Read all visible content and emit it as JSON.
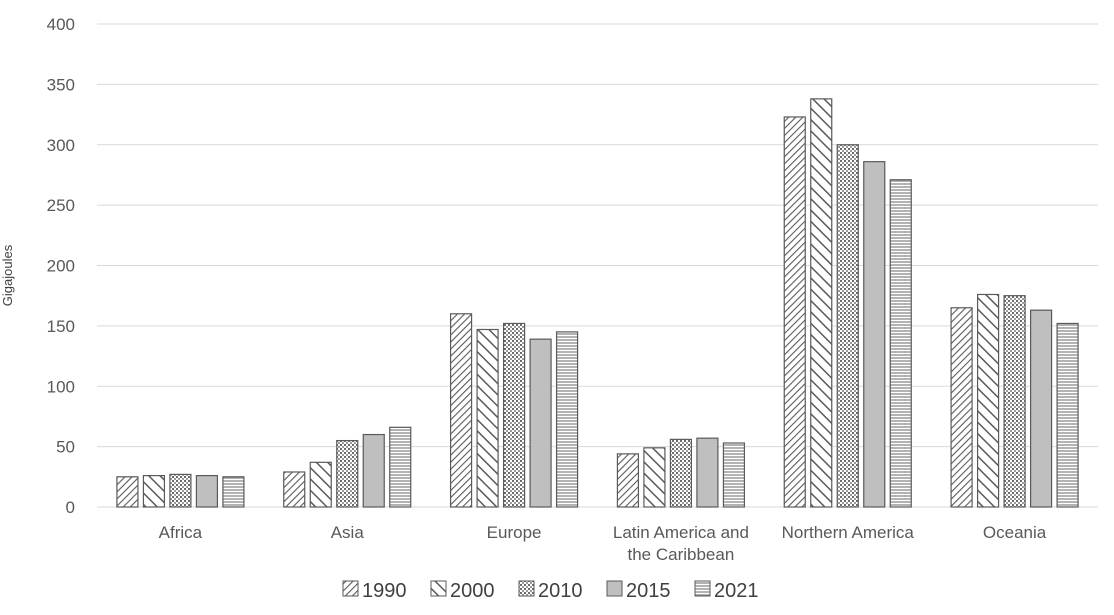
{
  "chart_data": {
    "type": "bar",
    "title": "",
    "xlabel": "",
    "ylabel": "Gigajoules",
    "ylim": [
      0,
      400
    ],
    "yticks": [
      0,
      50,
      100,
      150,
      200,
      250,
      300,
      350,
      400
    ],
    "grid": true,
    "legend_position": "bottom",
    "categories": [
      [
        "Africa"
      ],
      [
        "Asia"
      ],
      [
        "Europe"
      ],
      [
        "Latin America and",
        "the Caribbean"
      ],
      [
        "Northern America"
      ],
      [
        "Oceania"
      ]
    ],
    "series": [
      {
        "name": "1990",
        "pattern": "diag-down",
        "values": [
          25,
          29,
          160,
          44,
          323,
          165
        ]
      },
      {
        "name": "2000",
        "pattern": "wide-diag-down",
        "values": [
          26,
          37,
          147,
          49,
          338,
          176
        ]
      },
      {
        "name": "2010",
        "pattern": "dots",
        "values": [
          27,
          55,
          152,
          56,
          300,
          175
        ]
      },
      {
        "name": "2015",
        "pattern": "solid-gray",
        "values": [
          26,
          60,
          139,
          57,
          286,
          163
        ]
      },
      {
        "name": "2021",
        "pattern": "horizontal",
        "values": [
          25,
          66,
          145,
          53,
          271,
          152
        ]
      }
    ],
    "colors": {
      "stroke": "#5a5a5a",
      "fill_gray": "#bfbfbf",
      "grid": "#d9d9d9"
    }
  }
}
